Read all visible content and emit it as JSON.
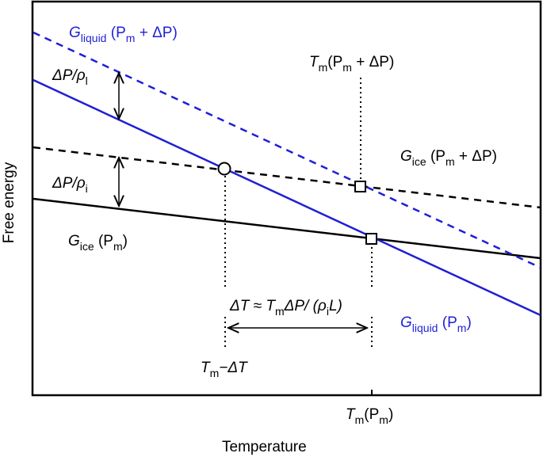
{
  "axes": {
    "xlabel": "Temperature",
    "ylabel": "Free energy",
    "xtick": {
      "main": "T",
      "sub": "m",
      "rest": "(P",
      "rest_sub": "m",
      "close": ")"
    }
  },
  "colors": {
    "liquid": "#1f1fd6",
    "ice": "#000000"
  },
  "labels": {
    "g_liquid_high": {
      "main": "G",
      "sub": "liquid",
      "rest": " (P",
      "rest_sub": "m",
      "tail": " + ΔP)"
    },
    "g_liquid_low": {
      "main": "G",
      "sub": "liquid",
      "rest": " (P",
      "rest_sub": "m",
      "tail": ")"
    },
    "g_ice_high": {
      "main": "G",
      "sub": "ice",
      "rest": " (P",
      "rest_sub": "m",
      "tail": " + ΔP)"
    },
    "g_ice_low": {
      "main": "G",
      "sub": "ice",
      "rest": " (P",
      "rest_sub": "m",
      "tail": ")"
    },
    "tm_shift": {
      "main": "T",
      "sub": "m",
      "rest": "(P",
      "rest_sub": "m",
      "tail": " + ΔP)"
    },
    "tm_minus": {
      "main": "T",
      "sub": "m",
      "tail": "−ΔT"
    },
    "dp_rho_l": {
      "main": "ΔP/ρ",
      "sub": "l"
    },
    "dp_rho_i": {
      "main": "ΔP/ρ",
      "sub": "i"
    },
    "delta_t": {
      "a": "ΔT ≈ T",
      "a_sub": "m",
      "b": "ΔP/ (ρ",
      "b_sub": "i",
      "c": "L)"
    }
  }
}
